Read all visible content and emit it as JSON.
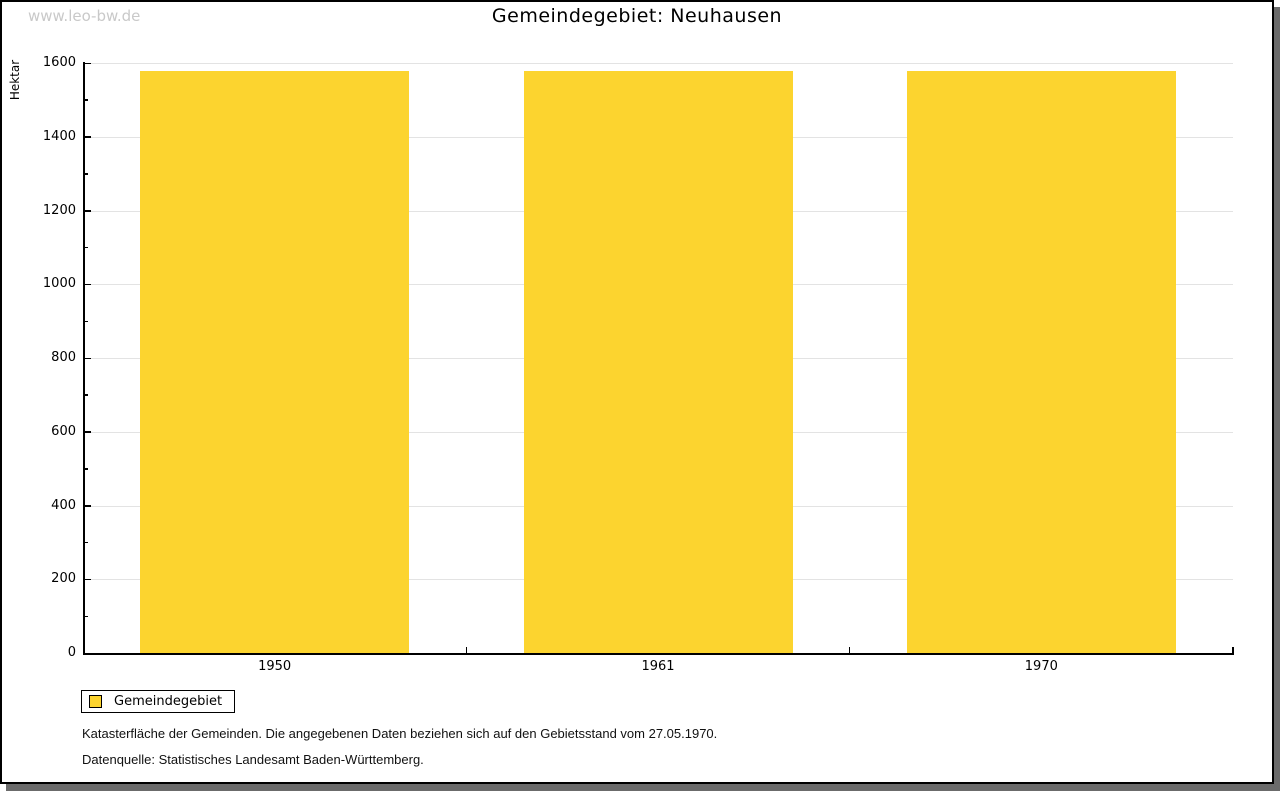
{
  "watermark": "www.leo-bw.de",
  "chart_data": {
    "type": "bar",
    "title": "Gemeindegebiet: Neuhausen",
    "ylabel": "Hektar",
    "xlabel": "",
    "categories": [
      "1950",
      "1961",
      "1970"
    ],
    "series": [
      {
        "name": "Gemeindegebiet",
        "values": [
          1578,
          1578,
          1578
        ]
      }
    ],
    "ylim": [
      0,
      1600
    ],
    "ytick_major_step": 200,
    "ytick_minor_step": 100,
    "grid": "horizontal-major",
    "legend_position": "bottom-left",
    "colors": {
      "bar": "#fcd42f",
      "gridline": "#e3e3e3",
      "axis": "#000000",
      "watermark": "#c9c9c9"
    }
  },
  "footer": {
    "line1": "Katasterfläche der Gemeinden. Die angegebenen Daten beziehen sich auf den Gebietsstand vom 27.05.1970.",
    "line2": "Datenquelle: Statistisches Landesamt Baden-Württemberg."
  }
}
